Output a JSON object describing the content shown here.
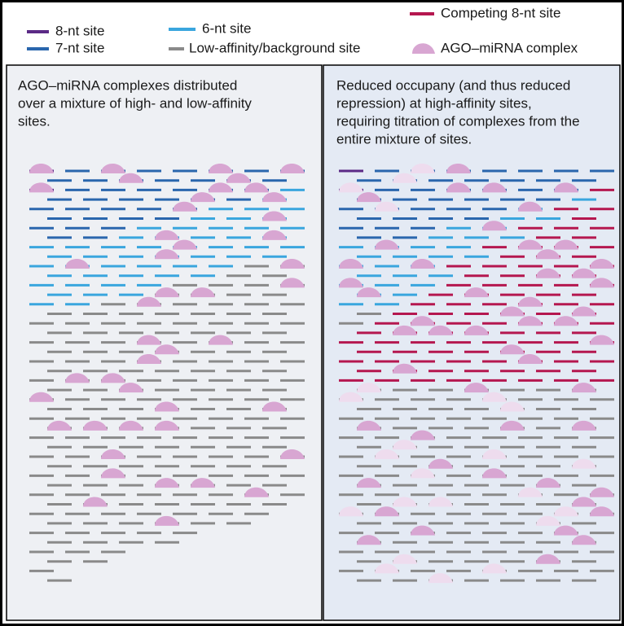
{
  "legend": {
    "items": [
      {
        "label": "8-nt site"
      },
      {
        "label": "7-nt site"
      },
      {
        "label": "6-nt site"
      },
      {
        "label": "Low-affinity/background site"
      },
      {
        "label": "Competing 8-nt site"
      },
      {
        "label": "AGO–miRNA complex"
      }
    ]
  },
  "panels": [
    {
      "caption": [
        "AGO–miRNA complexes distributed",
        "over a mixture of high- and low-affinity",
        "sites."
      ]
    },
    {
      "caption": [
        "Reduced occupany (and thus reduced",
        "repression) at high-affinity sites,",
        "requiring titration of complexes from the",
        "entire mixture of sites."
      ]
    }
  ]
}
